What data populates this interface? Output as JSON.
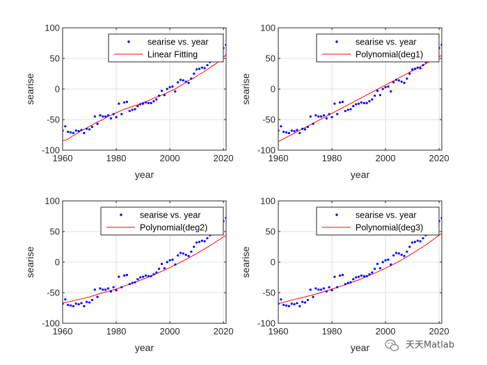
{
  "colors": {
    "marker": "#0000ff",
    "fit": "#ff0000",
    "grid": "#e0e0e0",
    "axis": "#262626"
  },
  "watermark": {
    "text": "天天Matlab",
    "icon": "wechat-icon"
  },
  "chart_data": [
    {
      "type": "scatter",
      "xlabel": "year",
      "ylabel": "searise",
      "xlim": [
        1960,
        2021
      ],
      "ylim": [
        -100,
        100
      ],
      "xticks": [
        "1960",
        "1980",
        "2000",
        "2020"
      ],
      "yticks": [
        "-100",
        "-50",
        "0",
        "50",
        "100"
      ],
      "grid": true,
      "legend_position": "top-right",
      "series": [
        {
          "name": "searise vs. year",
          "kind": "points"
        },
        {
          "name": "Linear Fitting",
          "kind": "line",
          "fit": "wavy"
        }
      ]
    },
    {
      "type": "scatter",
      "xlabel": "year",
      "ylabel": "searise",
      "xlim": [
        1960,
        2021
      ],
      "ylim": [
        -100,
        100
      ],
      "xticks": [
        "1960",
        "1980",
        "2000",
        "2020"
      ],
      "yticks": [
        "-100",
        "-50",
        "0",
        "50",
        "100"
      ],
      "grid": true,
      "legend_position": "top-right",
      "series": [
        {
          "name": "searise vs. year",
          "kind": "points"
        },
        {
          "name": "Polynomial(deg1)",
          "kind": "line",
          "fit": "deg1"
        }
      ]
    },
    {
      "type": "scatter",
      "xlabel": "year",
      "ylabel": "searise",
      "xlim": [
        1960,
        2021
      ],
      "ylim": [
        -100,
        100
      ],
      "xticks": [
        "1960",
        "1980",
        "2000",
        "2020"
      ],
      "yticks": [
        "-100",
        "-50",
        "0",
        "50",
        "100"
      ],
      "grid": true,
      "legend_position": "top-right",
      "series": [
        {
          "name": "searise vs. year",
          "kind": "points"
        },
        {
          "name": "Polynomial(deg2)",
          "kind": "line",
          "fit": "deg2"
        }
      ]
    },
    {
      "type": "scatter",
      "xlabel": "year",
      "ylabel": "searise",
      "xlim": [
        1960,
        2021
      ],
      "ylim": [
        -100,
        100
      ],
      "xticks": [
        "1960",
        "1980",
        "2000",
        "2020"
      ],
      "yticks": [
        "-100",
        "-50",
        "0",
        "50",
        "100"
      ],
      "grid": true,
      "legend_position": "top-right",
      "series": [
        {
          "name": "searise vs. year",
          "kind": "points"
        },
        {
          "name": "Polynomial(deg3)",
          "kind": "line",
          "fit": "deg3"
        }
      ]
    }
  ],
  "observed": {
    "x": [
      1960,
      1961,
      1962,
      1963,
      1964,
      1965,
      1966,
      1967,
      1968,
      1969,
      1970,
      1971,
      1972,
      1973,
      1974,
      1975,
      1976,
      1977,
      1978,
      1979,
      1980,
      1981,
      1982,
      1983,
      1984,
      1985,
      1986,
      1987,
      1988,
      1989,
      1990,
      1991,
      1992,
      1993,
      1994,
      1995,
      1996,
      1997,
      1998,
      1999,
      2000,
      2001,
      2002,
      2003,
      2004,
      2005,
      2006,
      2007,
      2008,
      2009,
      2010,
      2011,
      2012,
      2013,
      2014,
      2015,
      2016,
      2017,
      2018,
      2019,
      2020,
      2021
    ],
    "y": [
      -68,
      -61,
      -70,
      -71,
      -72,
      -68,
      -69,
      -67,
      -72,
      -65,
      -66,
      -62,
      -45,
      -57,
      -43,
      -45,
      -45,
      -43,
      -48,
      -41,
      -46,
      -24,
      -41,
      -22,
      -21,
      -36,
      -34,
      -33,
      -28,
      -25,
      -24,
      -22,
      -23,
      -23,
      -20,
      -17,
      -11,
      -3,
      -10,
      0,
      3,
      4,
      -4,
      11,
      15,
      14,
      12,
      10,
      17,
      25,
      32,
      33,
      35,
      34,
      39,
      44,
      47,
      52,
      58,
      62,
      67,
      72
    ]
  },
  "fits": {
    "wavy": {
      "x": [
        1960,
        1961,
        1962,
        1963,
        1964,
        1965,
        1966,
        1967,
        1968,
        1969,
        1970,
        1971,
        1972,
        1973,
        1974,
        1975,
        1976,
        1977,
        1978,
        1979,
        1980,
        1981,
        1982,
        1983,
        1984,
        1985,
        1986,
        1987,
        1988,
        1989,
        1990,
        1991,
        1992,
        1993,
        1994,
        1995,
        1996,
        1997,
        1998,
        1999,
        2000,
        2001,
        2002,
        2003,
        2004,
        2005,
        2006,
        2007,
        2008,
        2009,
        2010,
        2011,
        2012,
        2013,
        2014,
        2015,
        2016,
        2017,
        2018,
        2019,
        2020,
        2021
      ],
      "y": [
        -84,
        -84,
        -82,
        -79,
        -76,
        -74,
        -71,
        -68,
        -66,
        -64,
        -61,
        -59,
        -56,
        -54,
        -52,
        -50,
        -47,
        -45,
        -43,
        -41,
        -39,
        -37,
        -35,
        -33,
        -32,
        -30,
        -29,
        -27,
        -26,
        -24,
        -22,
        -21,
        -19,
        -17,
        -15,
        -13,
        -12,
        -10,
        -8,
        -6,
        -4,
        -2,
        0,
        3,
        5,
        8,
        11,
        14,
        16,
        18,
        21,
        24,
        26,
        29,
        32,
        35,
        38,
        41,
        44,
        48,
        52,
        56
      ]
    },
    "deg1": {
      "x": [
        1960,
        2021
      ],
      "y": [
        -86,
        55
      ]
    },
    "deg2": {
      "x": [
        1960,
        1965,
        1970,
        1975,
        1980,
        1985,
        1990,
        1995,
        2000,
        2005,
        2010,
        2015,
        2021
      ],
      "y": [
        -67,
        -62,
        -57,
        -50,
        -44,
        -36,
        -28,
        -19,
        -9,
        2,
        14,
        27,
        44
      ]
    },
    "deg3": {
      "x": [
        1960,
        1965,
        1970,
        1975,
        1980,
        1985,
        1990,
        1995,
        2000,
        2005,
        2010,
        2015,
        2021
      ],
      "y": [
        -68,
        -62,
        -57,
        -51,
        -44,
        -37,
        -29,
        -20,
        -10,
        1,
        14,
        28,
        47
      ]
    }
  }
}
